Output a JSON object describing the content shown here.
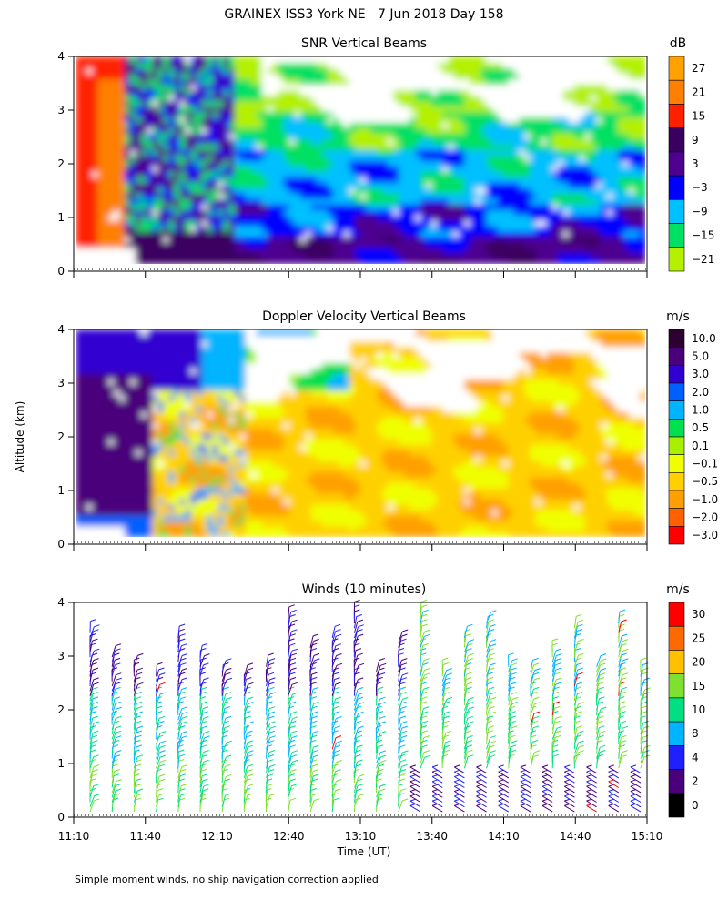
{
  "page_title": "GRAINEX ISS3 York NE   7 Jun 2018 Day 158",
  "footer_note": "Simple moment winds, no ship navigation correction applied",
  "chart_data": [
    {
      "type": "heatmap",
      "title": "SNR Vertical Beams",
      "colorbar_unit": "dB",
      "colorbar_levels": [
        "27",
        "21",
        "15",
        "9",
        "3",
        "−3",
        "−9",
        "−15",
        "−21"
      ],
      "colorbar_colors": [
        "#ffa200",
        "#ff8000",
        "#ff2000",
        "#3a0060",
        "#4e008f",
        "#0000ff",
        "#00c0ff",
        "#00e064",
        "#b4f000"
      ],
      "y_ticks": [
        "0",
        "1",
        "2",
        "3",
        "4"
      ],
      "ylim": [
        0,
        4
      ],
      "xlim": [
        "11:10",
        "15:10"
      ]
    },
    {
      "type": "heatmap",
      "title": "Doppler Velocity Vertical Beams",
      "colorbar_unit": "m/s",
      "colorbar_levels": [
        "10.0",
        "5.0",
        "3.0",
        "2.0",
        "1.0",
        "0.5",
        "0.1",
        "−0.1",
        "−0.5",
        "−1.0",
        "−2.0",
        "−3.0"
      ],
      "colorbar_colors": [
        "#2c0030",
        "#4a007a",
        "#3000d0",
        "#0060ff",
        "#00b4ff",
        "#00e050",
        "#a8f000",
        "#f0ff00",
        "#ffd000",
        "#ffa000",
        "#ff6000",
        "#ff0000"
      ],
      "y_ticks": [
        "0",
        "1",
        "2",
        "3",
        "4"
      ],
      "ylabel": "Altitude (km)",
      "ylim": [
        0,
        4
      ],
      "xlim": [
        "11:10",
        "15:10"
      ]
    },
    {
      "type": "scatter",
      "title": "Winds (10 minutes)",
      "colorbar_unit": "m/s",
      "colorbar_levels": [
        "30",
        "25",
        "20",
        "15",
        "10",
        "8",
        "4",
        "2",
        "0"
      ],
      "colorbar_colors": [
        "#ff0000",
        "#ff6a00",
        "#ffc000",
        "#80e030",
        "#00e080",
        "#00b4ff",
        "#2020ff",
        "#4a007a",
        "#000000"
      ],
      "y_ticks": [
        "0",
        "1",
        "2",
        "3",
        "4"
      ],
      "x_ticks": [
        "11:10",
        "11:40",
        "12:10",
        "12:40",
        "13:10",
        "13:40",
        "14:10",
        "14:40",
        "15:10"
      ],
      "xlabel": "Time (UT)",
      "ylim": [
        0,
        4
      ],
      "xlim": [
        "11:10",
        "15:10"
      ]
    }
  ]
}
